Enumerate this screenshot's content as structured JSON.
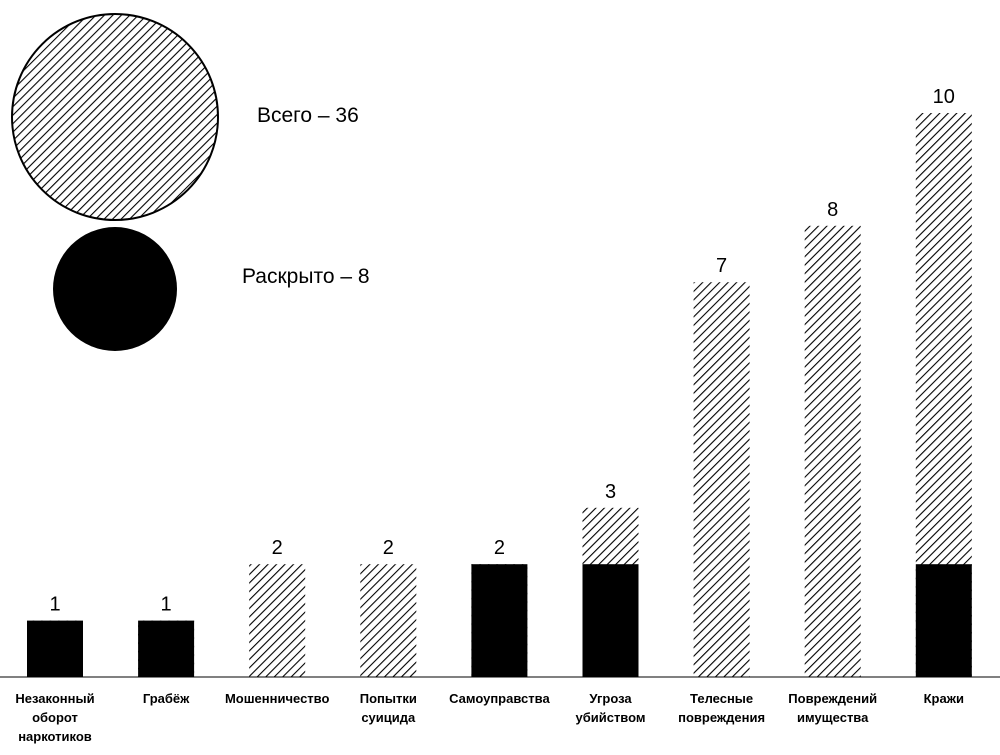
{
  "legend": {
    "total_label": "Всего – 36",
    "solved_label": "Раскрыто – 8",
    "total_pattern": "diagonal-hatch",
    "solved_color": "#000000"
  },
  "chart_data": {
    "type": "bar",
    "categories": [
      "Незаконный оборот наркотиков",
      "Грабёж",
      "Мошенничество",
      "Попытки суицида",
      "Самоуправства",
      "Угроза убийством",
      "Телесные повреждения",
      "Повреждений имущества",
      "Кражи"
    ],
    "category_lines": [
      [
        "Незаконный",
        "оборот",
        "наркотиков"
      ],
      [
        "Грабёж"
      ],
      [
        "Мошенничество"
      ],
      [
        "Попытки",
        "суицида"
      ],
      [
        "Самоуправства"
      ],
      [
        "Угроза",
        "убийством"
      ],
      [
        "Телесные",
        "повреждения"
      ],
      [
        "Повреждений",
        "имущества"
      ],
      [
        "Кражи"
      ]
    ],
    "series": [
      {
        "name": "Всего",
        "values": [
          1,
          1,
          2,
          2,
          2,
          3,
          7,
          8,
          10
        ],
        "pattern": "diagonal-hatch"
      },
      {
        "name": "Раскрыто",
        "values": [
          1,
          1,
          0,
          0,
          2,
          2,
          0,
          0,
          2
        ],
        "color": "#000000"
      }
    ],
    "value_labels": [
      "1",
      "1",
      "2",
      "2",
      "2",
      "3",
      "7",
      "8",
      "10"
    ],
    "ylim": [
      0,
      10
    ],
    "grid": false,
    "legend_position": "top-left"
  }
}
